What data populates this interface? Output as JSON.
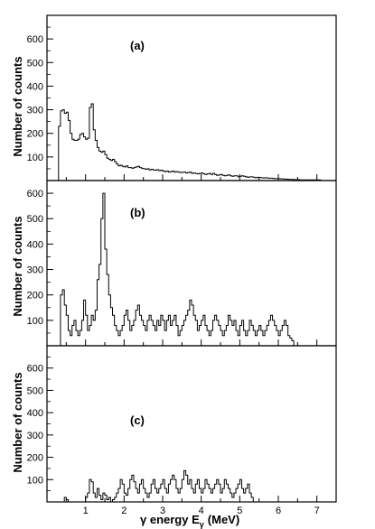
{
  "chart_data": [
    {
      "type": "histogram",
      "panel_label": "(a)",
      "ylabel": "Number of counts",
      "xlim": [
        0,
        7.5
      ],
      "ylim": [
        0,
        700
      ],
      "yticks": [
        100,
        200,
        300,
        400,
        500,
        600
      ],
      "xticks": [
        1,
        2,
        3,
        4,
        5,
        6,
        7
      ],
      "bin_width": 0.05,
      "x_start": 0.3,
      "values": [
        230,
        295,
        300,
        285,
        290,
        255,
        200,
        175,
        170,
        170,
        175,
        195,
        200,
        185,
        175,
        180,
        310,
        325,
        215,
        170,
        140,
        125,
        120,
        125,
        110,
        95,
        90,
        85,
        90,
        80,
        70,
        62,
        65,
        60,
        58,
        62,
        55,
        55,
        52,
        55,
        58,
        60,
        55,
        52,
        50,
        48,
        50,
        45,
        48,
        45,
        44,
        46,
        42,
        44,
        40,
        38,
        40,
        36,
        38,
        40,
        36,
        38,
        36,
        34,
        35,
        36,
        32,
        34,
        36,
        30,
        32,
        30,
        28,
        30,
        32,
        28,
        26,
        28,
        30,
        26,
        30,
        26,
        22,
        24,
        26,
        22,
        20,
        22,
        24,
        20,
        18,
        20,
        20,
        16,
        18,
        20,
        18,
        16,
        14,
        16,
        16,
        14,
        12,
        14,
        13,
        12,
        11,
        12,
        11,
        10,
        10,
        9,
        8,
        8,
        8,
        7,
        7,
        6,
        6,
        5,
        5,
        5,
        4,
        4,
        4,
        3,
        3,
        3,
        3,
        3,
        3,
        3,
        3,
        3,
        3,
        3
      ]
    },
    {
      "type": "histogram",
      "panel_label": "(b)",
      "ylabel": "Number of counts",
      "xlim": [
        0,
        7.5
      ],
      "ylim": [
        0,
        650
      ],
      "yticks": [
        100,
        200,
        300,
        400,
        500,
        600
      ],
      "xticks": [
        1,
        2,
        3,
        4,
        5,
        6,
        7
      ],
      "bin_width": 0.05,
      "x_start": 0.25,
      "values": [
        0,
        0,
        200,
        220,
        160,
        120,
        60,
        40,
        80,
        100,
        60,
        40,
        60,
        100,
        180,
        120,
        60,
        80,
        120,
        100,
        140,
        260,
        320,
        500,
        600,
        380,
        280,
        200,
        150,
        120,
        80,
        60,
        40,
        60,
        80,
        120,
        140,
        100,
        60,
        80,
        100,
        140,
        160,
        120,
        100,
        80,
        60,
        100,
        120,
        100,
        80,
        60,
        100,
        80,
        120,
        100,
        60,
        100,
        120,
        80,
        100,
        120,
        80,
        40,
        60,
        80,
        100,
        120,
        140,
        180,
        160,
        120,
        100,
        60,
        80,
        100,
        120,
        80,
        60,
        40,
        60,
        100,
        120,
        100,
        80,
        60,
        40,
        60,
        80,
        120,
        100,
        80,
        100,
        60,
        40,
        80,
        100,
        60,
        40,
        60,
        100,
        80,
        60,
        40,
        60,
        80,
        60,
        40,
        60,
        80,
        100,
        120,
        100,
        80,
        60,
        40,
        60,
        80,
        100,
        80,
        40,
        30,
        20
      ]
    },
    {
      "type": "histogram",
      "panel_label": "(c)",
      "ylabel": "Number of counts",
      "xlabel": "γ energy E",
      "xlabel_subscript": "γ",
      "xlabel_unit": "(MeV)",
      "xlim": [
        0,
        7.5
      ],
      "ylim": [
        0,
        700
      ],
      "yticks": [
        100,
        200,
        300,
        400,
        500,
        600
      ],
      "xticks": [
        1,
        2,
        3,
        4,
        5,
        6,
        7
      ],
      "xtick_labels": [
        "1",
        "2",
        "3",
        "4",
        "5",
        "6",
        "7"
      ],
      "bin_width": 0.05,
      "x_start": 0.25,
      "values": [
        0,
        0,
        0,
        0,
        20,
        10,
        0,
        0,
        0,
        0,
        0,
        0,
        0,
        0,
        0,
        20,
        40,
        100,
        90,
        40,
        20,
        60,
        30,
        10,
        40,
        30,
        10,
        20,
        0,
        10,
        20,
        40,
        60,
        100,
        80,
        40,
        30,
        60,
        100,
        120,
        90,
        60,
        40,
        80,
        100,
        60,
        40,
        20,
        40,
        80,
        100,
        60,
        40,
        60,
        80,
        100,
        60,
        40,
        80,
        100,
        120,
        100,
        60,
        40,
        60,
        100,
        140,
        120,
        80,
        100,
        60,
        40,
        80,
        100,
        60,
        40,
        60,
        100,
        80,
        60,
        40,
        60,
        80,
        100,
        80,
        40,
        60,
        100,
        80,
        60,
        40,
        20,
        40,
        60,
        80,
        100,
        60,
        40,
        60,
        80,
        40,
        20,
        0
      ]
    }
  ]
}
